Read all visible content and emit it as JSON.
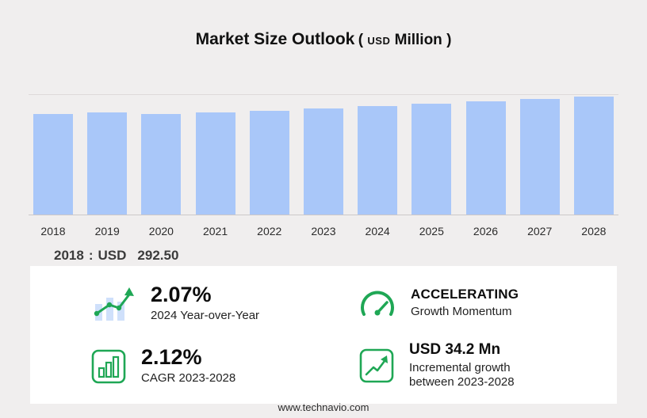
{
  "title": {
    "main": "Market Size Outlook",
    "open_paren": "(",
    "currency": "USD",
    "word": "Million",
    "close_paren": ")"
  },
  "chart_data": {
    "type": "bar",
    "title": "Market Size Outlook (USD Million)",
    "categories": [
      "2018",
      "2019",
      "2020",
      "2021",
      "2022",
      "2023",
      "2024",
      "2025",
      "2026",
      "2027",
      "2028"
    ],
    "values": [
      292.5,
      296.6,
      291.6,
      295.9,
      301.4,
      309.0,
      315.4,
      322.0,
      328.8,
      335.8,
      343.2
    ],
    "xlabel": "",
    "ylabel": "USD Million",
    "ylim": [
      0,
      430
    ],
    "grid": true,
    "legend": "none",
    "bar_color": "#a9c7f9"
  },
  "callout": {
    "year": "2018",
    "colon": ":",
    "currency": "USD",
    "value": "292.50"
  },
  "stats": {
    "yoy": {
      "value": "2.07%",
      "label": "2024 Year-over-Year"
    },
    "momentum": {
      "value": "ACCELERATING",
      "label": "Growth Momentum"
    },
    "cagr": {
      "value": "2.12%",
      "label": "CAGR 2023-2028"
    },
    "incremental": {
      "value": "USD 34.2 Mn",
      "label_line1": "Incremental growth",
      "label_line2": "between 2023-2028"
    }
  },
  "footer": {
    "url": "www.technavio.com"
  },
  "colors": {
    "accent_green": "#1fa755",
    "bar_blue": "#a9c7f9",
    "light_bar_blue": "#cfe0fb"
  }
}
